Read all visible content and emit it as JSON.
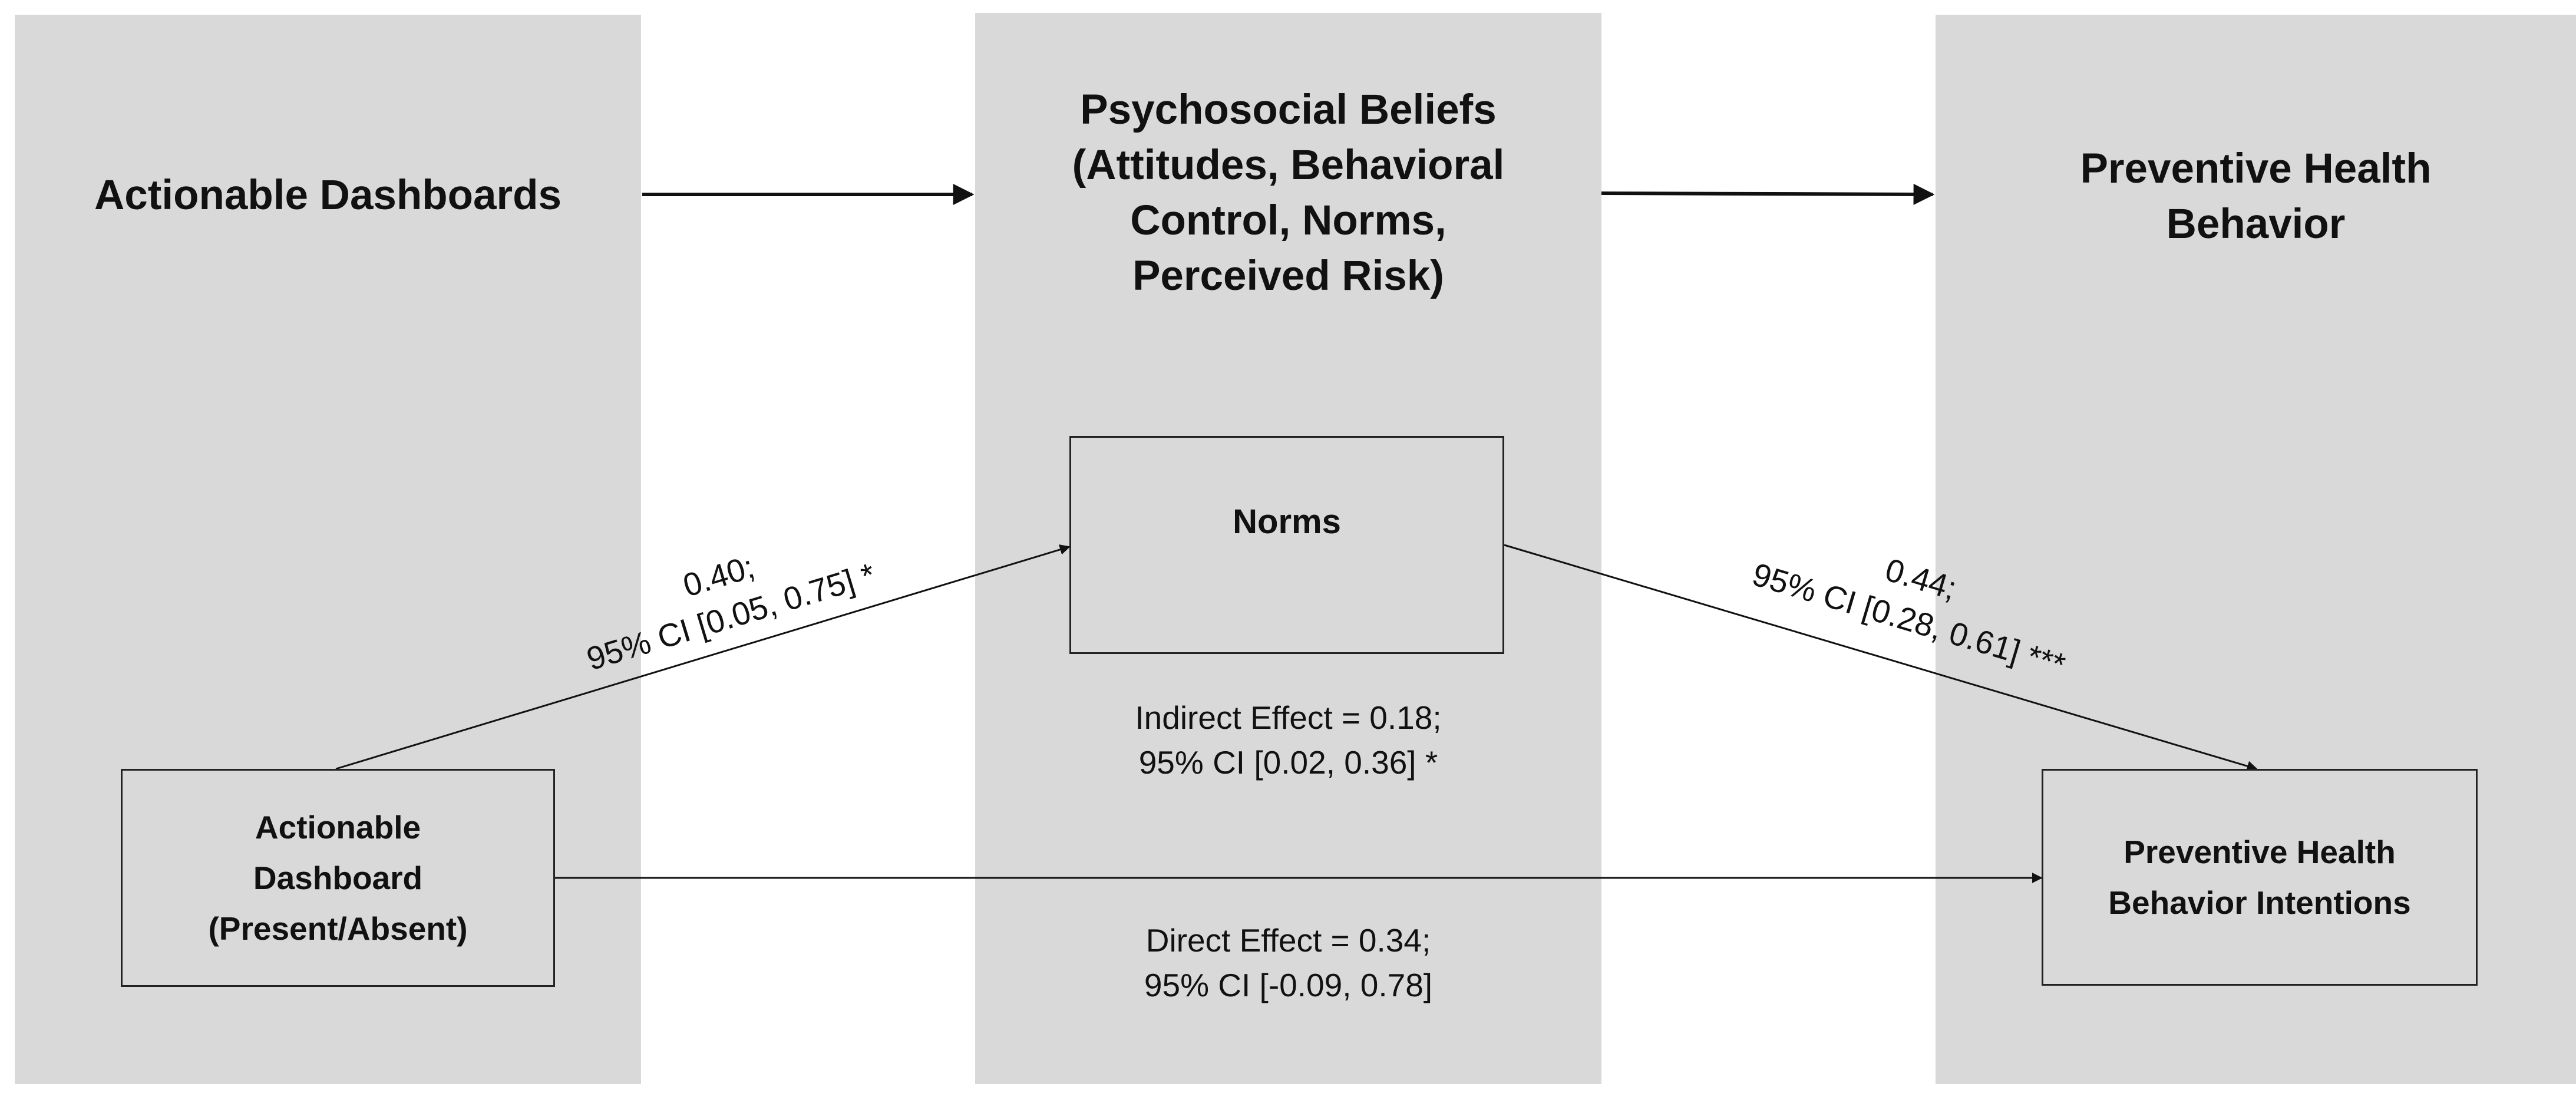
{
  "columns": {
    "left": {
      "title": "Actionable Dashboards"
    },
    "middle": {
      "title_lines": [
        "Psychosocial Beliefs",
        "(Attitudes, Behavioral",
        "Control, Norms,",
        "Perceived Risk)"
      ]
    },
    "right": {
      "title_lines": [
        "Preventive Health",
        "Behavior"
      ]
    }
  },
  "nodes": {
    "dashboard": {
      "lines": [
        "Actionable",
        "Dashboard",
        "(Present/Absent)"
      ]
    },
    "norms": {
      "label": "Norms"
    },
    "intentions": {
      "lines": [
        "Preventive Health",
        "Behavior Intentions"
      ]
    }
  },
  "paths": {
    "a_path": {
      "line1": "0.40;",
      "line2": "95% CI [0.05, 0.75] *"
    },
    "b_path": {
      "line1": "0.44;",
      "line2": "95% CI [0.28, 0.61] ***"
    },
    "indirect": {
      "line1": "Indirect Effect = 0.18;",
      "line2": "95% CI [0.02, 0.36] *"
    },
    "direct": {
      "line1": "Direct Effect = 0.34;",
      "line2": "95% CI [-0.09, 0.78]"
    }
  }
}
